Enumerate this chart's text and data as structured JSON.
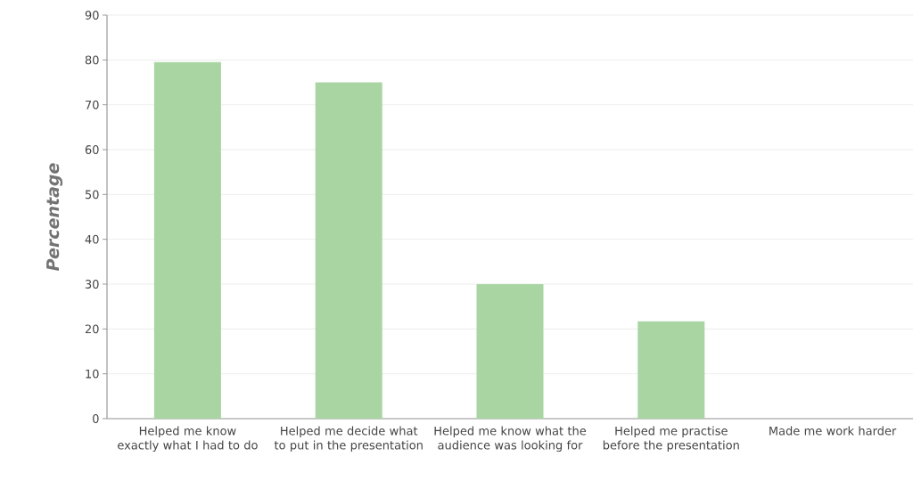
{
  "chart_data": {
    "type": "bar",
    "ylabel": "Percentage",
    "categories": [
      "Helped me know exactly what I had to do",
      "Helped me decide what to put in the presentation",
      "Helped me know what the audience was looking for",
      "Helped me practise before the presentation",
      "Made me work harder"
    ],
    "values": [
      79.5,
      75,
      30,
      21.7,
      0
    ],
    "color": "#a8d5a2",
    "ylim": [
      0,
      90
    ],
    "yticks": [
      0,
      10,
      20,
      30,
      40,
      50,
      60,
      70,
      80,
      90
    ],
    "grid": "y"
  }
}
